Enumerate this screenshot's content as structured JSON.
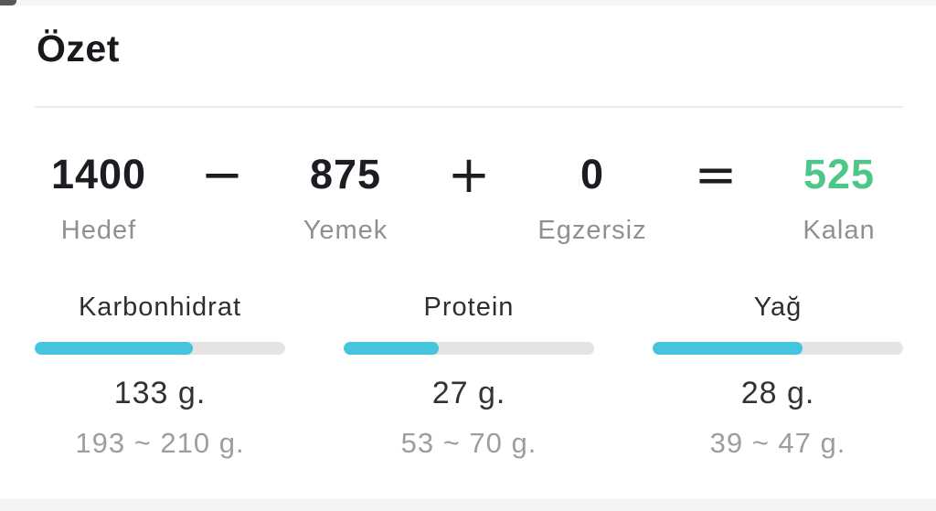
{
  "page": {
    "title": "Özet"
  },
  "colors": {
    "accent_green": "#4dc788",
    "bar_fill": "#45c4de",
    "bar_track": "#e4e4e4",
    "text_dark": "#1b1d22",
    "text_gray": "#8e9093"
  },
  "equation": {
    "items": [
      {
        "value": "1400",
        "label": "Hedef"
      },
      {
        "value": "875",
        "label": "Yemek"
      },
      {
        "value": "0",
        "label": "Egzersiz"
      },
      {
        "value": "525",
        "label": "Kalan"
      }
    ],
    "operators": [
      "−",
      "+",
      "="
    ]
  },
  "macros": [
    {
      "name": "Karbonhidrat",
      "value": "133 g.",
      "range": "193 ~ 210 g.",
      "percent": 63
    },
    {
      "name": "Protein",
      "value": "27 g.",
      "range": "53 ~ 70 g.",
      "percent": 38
    },
    {
      "name": "Yağ",
      "value": "28 g.",
      "range": "39 ~ 47 g.",
      "percent": 60
    }
  ]
}
